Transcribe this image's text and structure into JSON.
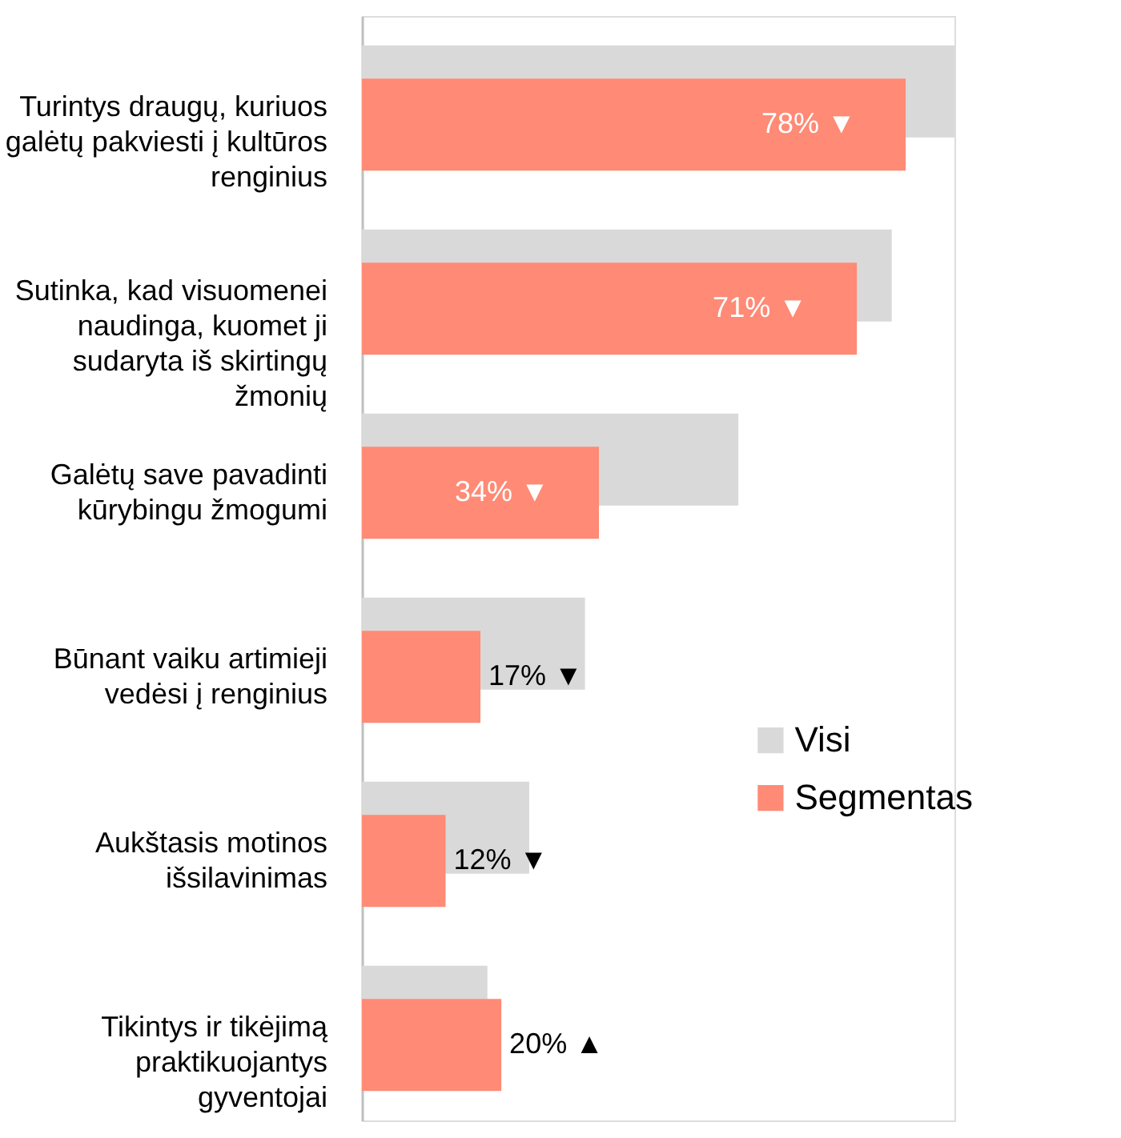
{
  "chart_data": {
    "type": "bar",
    "orientation": "horizontal",
    "categories": [
      "Turintys draugų, kuriuos\ngalėtų pakviesti į kultūros\nrenginius",
      "Sutinka, kad visuomenei\nnaudinga, kuomet ji\nsudaryta iš skirtingų\nžmonių",
      "Galėtų save pavadinti\nkūrybingu žmogumi",
      "Būnant vaiku artimieji\nvedėsi į renginius",
      "Aukštasis motinos\nišsilavinimas",
      "Tikintys ir tikėjimą\npraktikuojantys\ngyventojai"
    ],
    "series": [
      {
        "name": "Visi",
        "color": "#d9d9d9",
        "values": [
          85,
          76,
          54,
          32,
          24,
          18
        ]
      },
      {
        "name": "Segmentas",
        "color": "#ff8a75",
        "values": [
          78,
          71,
          34,
          17,
          12,
          20
        ],
        "value_labels": [
          "78% ▼",
          "71% ▼",
          "34% ▼",
          "17% ▼",
          "12% ▼",
          "20% ▲"
        ]
      }
    ],
    "legend": "right"
  }
}
